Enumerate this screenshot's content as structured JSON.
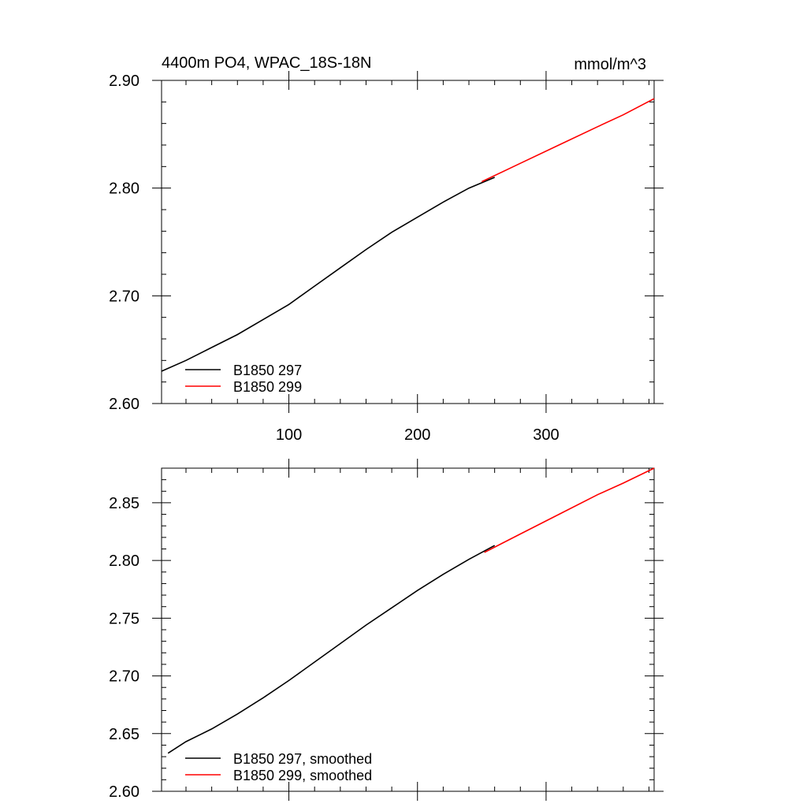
{
  "chart_data": [
    {
      "type": "line",
      "title_left": "4400m PO4, WPAC_18S-18N",
      "title_right": "mmol/m^3",
      "xlim": [
        1,
        384
      ],
      "ylim": [
        2.6,
        2.9
      ],
      "x_ticks": [
        100,
        200,
        300
      ],
      "x_tick_labels": [
        "100",
        "200",
        "300"
      ],
      "y_ticks": [
        2.6,
        2.7,
        2.8,
        2.9
      ],
      "y_tick_labels": [
        "2.60",
        "2.70",
        "2.80",
        "2.90"
      ],
      "legend_position": "bottom-left",
      "series": [
        {
          "name": "B1850 297",
          "color": "#000000",
          "x": [
            1,
            20,
            40,
            60,
            80,
            100,
            120,
            140,
            160,
            180,
            200,
            220,
            240,
            260
          ],
          "y": [
            2.63,
            2.64,
            2.652,
            2.664,
            2.678,
            2.692,
            2.709,
            2.726,
            2.743,
            2.759,
            2.773,
            2.787,
            2.8,
            2.81
          ]
        },
        {
          "name": "B1850 299",
          "color": "#ff0000",
          "x": [
            250,
            280,
            310,
            340,
            360,
            384
          ],
          "y": [
            2.806,
            2.823,
            2.84,
            2.857,
            2.868,
            2.883
          ]
        }
      ]
    },
    {
      "type": "line",
      "xlim": [
        1,
        384
      ],
      "ylim": [
        2.6,
        2.88
      ],
      "x_ticks": [
        100,
        200,
        300
      ],
      "y_ticks": [
        2.6,
        2.65,
        2.7,
        2.75,
        2.8,
        2.85
      ],
      "y_tick_labels": [
        "2.60",
        "2.65",
        "2.70",
        "2.75",
        "2.80",
        "2.85"
      ],
      "legend_position": "bottom-left",
      "series": [
        {
          "name": "B1850 297, smoothed",
          "color": "#000000",
          "x": [
            6,
            20,
            40,
            60,
            80,
            100,
            120,
            140,
            160,
            180,
            200,
            220,
            240,
            260
          ],
          "y": [
            2.633,
            2.643,
            2.654,
            2.667,
            2.681,
            2.696,
            2.712,
            2.728,
            2.744,
            2.759,
            2.774,
            2.788,
            2.801,
            2.813
          ]
        },
        {
          "name": "B1850 299, smoothed",
          "color": "#ff0000",
          "x": [
            252,
            280,
            310,
            340,
            360,
            384
          ],
          "y": [
            2.807,
            2.823,
            2.84,
            2.857,
            2.867,
            2.88
          ]
        }
      ]
    }
  ]
}
